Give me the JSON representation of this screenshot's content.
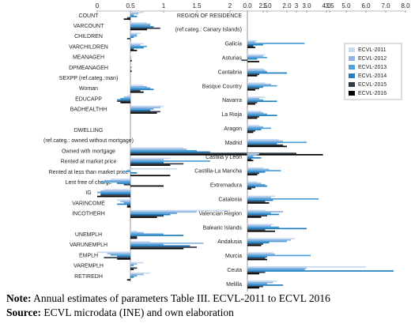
{
  "chart_data": [
    {
      "type": "bar",
      "orientation": "horizontal",
      "categories": [
        "COUNT",
        "VARCOUNT",
        "CHILDREN",
        "VARCHILDREN",
        "MEANAGEH",
        "DPMEANAGEH",
        "SEXPP (ref.categ.:man)",
        "Woman",
        "EDUCAPP",
        "BADHEALTHH",
        null,
        "DWELLING",
        "(ref.categ.: owned without mortgage)",
        "Owned with mortgage",
        "Rented at market price",
        "Rented at less than market price",
        "Lent free of charge",
        "IG",
        "VARINCOME",
        "INCOTHERH",
        null,
        "UNEMPLH",
        "VARUNEMPLH",
        "EMPLH",
        "VAREMPLH",
        "RETIREDH"
      ],
      "xlim": [
        0,
        3.5
      ],
      "xticks": [
        0,
        0.5,
        1,
        1.5,
        2,
        2.5,
        3,
        3.5
      ],
      "axis_crossing": 0.5,
      "series": [
        {
          "color": "#c6d9f1",
          "values": [
            0.7,
            0.75,
            0.65,
            0.7,
            0.5,
            0.52,
            null,
            0.7,
            0.45,
            1.0,
            null,
            null,
            null,
            1.3,
            1.1,
            1.2,
            0.2,
            0.1,
            0.3,
            2.0,
            null,
            0.6,
            0.8,
            0.0,
            0.7,
            0.8
          ]
        },
        {
          "color": "#8db4e2",
          "values": [
            0.62,
            0.8,
            0.6,
            0.65,
            0.5,
            0.5,
            null,
            0.75,
            0.4,
            0.95,
            null,
            null,
            null,
            1.35,
            1.0,
            0.45,
            0.1,
            0.05,
            0.35,
            1.5,
            null,
            0.7,
            1.6,
            0.15,
            0.6,
            0.7
          ]
        },
        {
          "color": "#4f9fd8",
          "values": [
            0.55,
            0.8,
            0.6,
            0.75,
            0.5,
            0.52,
            null,
            0.8,
            0.35,
            0.85,
            null,
            null,
            null,
            1.5,
            1.7,
            0.4,
            0.05,
            0.0,
            0.4,
            1.2,
            null,
            1.0,
            1.0,
            0.2,
            0.55,
            0.6
          ]
        },
        {
          "color": "#1f7fc0",
          "values": [
            0.6,
            0.85,
            0.55,
            0.7,
            0.5,
            0.5,
            null,
            0.85,
            0.3,
            0.8,
            null,
            null,
            null,
            1.7,
            1.0,
            0.6,
            0.3,
            0.05,
            0.3,
            1.1,
            null,
            1.3,
            1.4,
            0.3,
            0.5,
            0.55
          ]
        },
        {
          "color": "#2f3a4a",
          "values": [
            0.45,
            0.95,
            0.45,
            0.55,
            0.5,
            0.5,
            null,
            0.65,
            0.3,
            0.95,
            null,
            null,
            null,
            3.0,
            1.3,
            0.5,
            0.4,
            0.05,
            0.45,
            1.0,
            null,
            0.6,
            1.5,
            0.1,
            0.6,
            0.5
          ]
        },
        {
          "color": "#000000",
          "values": [
            0.4,
            0.75,
            0.5,
            0.6,
            0.52,
            0.52,
            null,
            0.7,
            0.35,
            0.9,
            null,
            null,
            null,
            3.4,
            1.1,
            1.1,
            1.0,
            0.0,
            0.45,
            0.9,
            null,
            0.6,
            1.3,
            0.3,
            0.55,
            0.45
          ]
        }
      ]
    },
    {
      "type": "bar",
      "orientation": "horizontal",
      "categories": [
        "REGION OF RESIDENCE",
        "(ref.categ.: Canary Islands)",
        "Galicia",
        "Asturias",
        "Cantabria",
        "Basque Country",
        "Navarra",
        "La Rioja",
        "Aragon",
        "Madrid",
        "Castilla y Leon",
        "Castilla-La Mancha",
        "Extremadura",
        "Catalonia",
        "Valencian Region",
        "Balearic Islands",
        "Andalusia",
        "Murcia",
        "Ceuta",
        "Melilla"
      ],
      "xlim": [
        0,
        8
      ],
      "xticks": [
        {
          "value": 0,
          "label": "0.0"
        },
        {
          "value": 1,
          "label": "1.0"
        },
        {
          "value": 2,
          "label": "2.0"
        },
        {
          "value": 3,
          "label": "3.0"
        },
        {
          "value": 4,
          "label": "4.0"
        },
        {
          "value": 5,
          "label": "5.0"
        },
        {
          "value": 6,
          "label": "6.0"
        },
        {
          "value": 7,
          "label": "7.0"
        },
        {
          "value": 8,
          "label": "8.0"
        }
      ],
      "legend": "upper right",
      "series": [
        {
          "name": "ECVL-2011",
          "color": "#c6d9f1",
          "values": [
            null,
            null,
            0.5,
            0.9,
            0.8,
            0.9,
            0.9,
            0.7,
            0.6,
            1.6,
            0.6,
            0.8,
            0.5,
            1.4,
            0.9,
            1.3,
            2.4,
            1.3,
            6.0,
            1.5
          ]
        },
        {
          "name": "ECVL-2012",
          "color": "#8db4e2",
          "values": [
            null,
            null,
            0.4,
            0.8,
            0.9,
            1.2,
            0.6,
            0.8,
            0.8,
            1.8,
            0.5,
            1.1,
            0.7,
            1.2,
            1.8,
            1.2,
            2.2,
            1.4,
            3.0,
            1.3
          ]
        },
        {
          "name": "ECVL-2013",
          "color": "#4f9fd8",
          "values": [
            null,
            null,
            2.9,
            1.0,
            1.0,
            1.5,
            0.8,
            1.0,
            1.2,
            3.0,
            0.3,
            1.7,
            0.9,
            3.6,
            1.2,
            1.6,
            2.0,
            3.2,
            2.9,
            1.0
          ]
        },
        {
          "name": "ECVL-2014",
          "color": "#1f7fc0",
          "values": [
            null,
            null,
            0.8,
            0.5,
            2.0,
            0.8,
            1.5,
            1.5,
            0.7,
            1.5,
            0.7,
            0.9,
            1.0,
            1.3,
            1.6,
            3.0,
            1.1,
            1.0,
            7.4,
            1.8
          ]
        },
        {
          "name": "ECVL-2015",
          "color": "#2f3a4a",
          "values": [
            null,
            null,
            0.3,
            -0.3,
            0.6,
            0.6,
            0.5,
            0.6,
            0.4,
            1.8,
            0.2,
            0.6,
            0.4,
            0.9,
            1.0,
            0.9,
            0.8,
            0.9,
            0.9,
            0.8
          ]
        },
        {
          "name": "ECVL-2016",
          "color": "#000000",
          "values": [
            null,
            null,
            0.4,
            0.6,
            0.5,
            0.4,
            0.4,
            0.5,
            0.3,
            2.0,
            0.3,
            0.5,
            0.2,
            1.1,
            0.7,
            1.4,
            0.7,
            1.0,
            0.6,
            0.6
          ]
        }
      ]
    }
  ],
  "notes": [
    {
      "label": "Note:",
      "text": "Annual estimates of parameters Table III. ECVL-2011 to ECVL 2016"
    },
    {
      "label": "Source:",
      "text": "ECVL microdata (INE) and own elaboration"
    }
  ]
}
